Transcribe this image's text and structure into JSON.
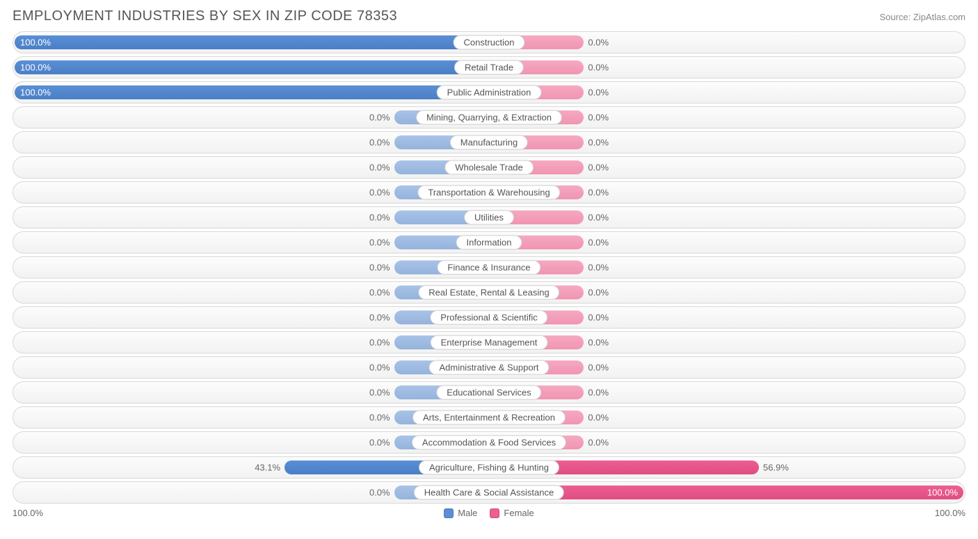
{
  "header": {
    "title": "EMPLOYMENT INDUSTRIES BY SEX IN ZIP CODE 78353",
    "source": "Source: ZipAtlas.com"
  },
  "chart": {
    "type": "diverging-bar",
    "male_color_full": "#5a8fd6",
    "male_color_light": "#a9c3e8",
    "female_color_full": "#ec5f92",
    "female_color_light": "#f6a9c1",
    "background_color": "#ffffff",
    "row_bg_gradient_top": "#fcfcfc",
    "row_bg_gradient_bottom": "#f2f2f2",
    "border_color": "#d8d8d8",
    "label_fontsize": 13,
    "title_fontsize": 20,
    "min_bar_pct": 20,
    "axis": {
      "left_label": "100.0%",
      "right_label": "100.0%"
    },
    "legend": [
      {
        "label": "Male",
        "color": "#5a8fd6"
      },
      {
        "label": "Female",
        "color": "#ec5f92"
      }
    ],
    "rows": [
      {
        "category": "Construction",
        "male": 100.0,
        "female": 0.0
      },
      {
        "category": "Retail Trade",
        "male": 100.0,
        "female": 0.0
      },
      {
        "category": "Public Administration",
        "male": 100.0,
        "female": 0.0
      },
      {
        "category": "Mining, Quarrying, & Extraction",
        "male": 0.0,
        "female": 0.0
      },
      {
        "category": "Manufacturing",
        "male": 0.0,
        "female": 0.0
      },
      {
        "category": "Wholesale Trade",
        "male": 0.0,
        "female": 0.0
      },
      {
        "category": "Transportation & Warehousing",
        "male": 0.0,
        "female": 0.0
      },
      {
        "category": "Utilities",
        "male": 0.0,
        "female": 0.0
      },
      {
        "category": "Information",
        "male": 0.0,
        "female": 0.0
      },
      {
        "category": "Finance & Insurance",
        "male": 0.0,
        "female": 0.0
      },
      {
        "category": "Real Estate, Rental & Leasing",
        "male": 0.0,
        "female": 0.0
      },
      {
        "category": "Professional & Scientific",
        "male": 0.0,
        "female": 0.0
      },
      {
        "category": "Enterprise Management",
        "male": 0.0,
        "female": 0.0
      },
      {
        "category": "Administrative & Support",
        "male": 0.0,
        "female": 0.0
      },
      {
        "category": "Educational Services",
        "male": 0.0,
        "female": 0.0
      },
      {
        "category": "Arts, Entertainment & Recreation",
        "male": 0.0,
        "female": 0.0
      },
      {
        "category": "Accommodation & Food Services",
        "male": 0.0,
        "female": 0.0
      },
      {
        "category": "Agriculture, Fishing & Hunting",
        "male": 43.1,
        "female": 56.9
      },
      {
        "category": "Health Care & Social Assistance",
        "male": 0.0,
        "female": 100.0
      }
    ]
  }
}
